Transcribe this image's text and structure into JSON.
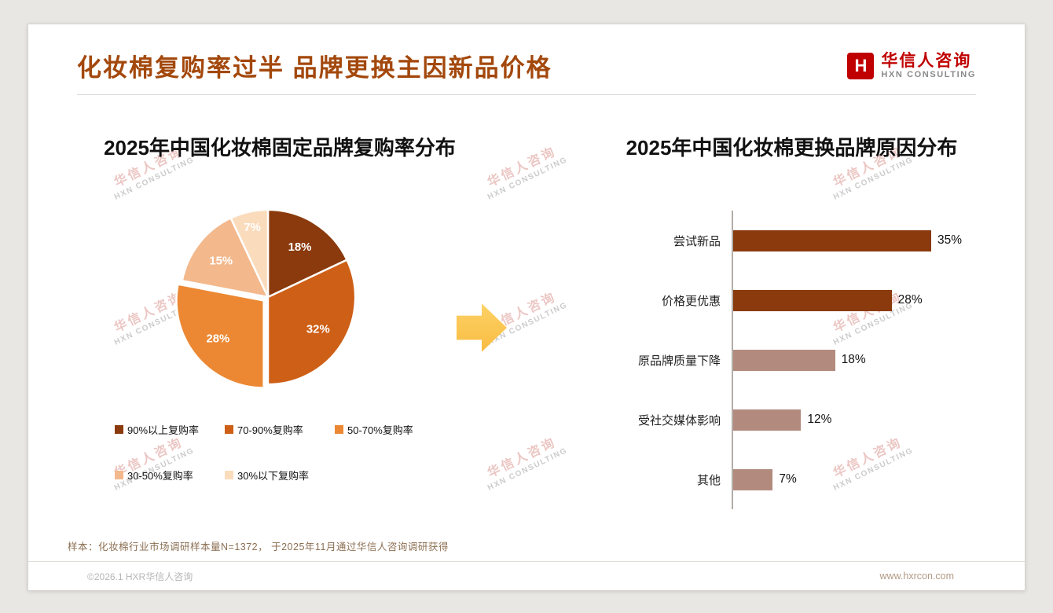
{
  "page": {
    "title": "化妆棉复购率过半 品牌更换主因新品价格",
    "footnote": "样本：化妆棉行业市场调研样本量N=1372， 于2025年11月通过华信人咨询调研获得",
    "copyright": "©2026.1 HXR华信人咨询",
    "website": "www.hxrcon.com"
  },
  "logo": {
    "mark": "H",
    "name_cn": "华信人咨询",
    "name_en": "HXN CONSULTING"
  },
  "watermark": {
    "line1": "华信人咨询",
    "line2": "HXN CONSULTING"
  },
  "colors": {
    "title": "#a3480c",
    "accent_dark": "#8a3a0c",
    "accent_rosy": "#b28b7e",
    "arrow": "#fbc64f",
    "logo_red": "#c00000"
  },
  "chart_data": [
    {
      "type": "pie",
      "title": "2025年中国化妆棉固定品牌复购率分布",
      "labels": [
        "90%以上复购率",
        "70-90%复购率",
        "50-70%复购率",
        "30-50%复购率",
        "30%以下复购率"
      ],
      "values": [
        18,
        32,
        28,
        15,
        7
      ],
      "value_labels": [
        "18%",
        "32%",
        "28%",
        "15%",
        "7%"
      ],
      "colors": [
        "#8a3a0c",
        "#ce5f16",
        "#ec8833",
        "#f3b88c",
        "#fadcbd"
      ],
      "explode_index": 2,
      "start_angle": "top",
      "direction": "clockwise",
      "legend_position": "bottom"
    },
    {
      "type": "bar",
      "orientation": "horizontal",
      "title": "2025年中国化妆棉更换品牌原因分布",
      "categories": [
        "尝试新品",
        "价格更优惠",
        "原品牌质量下降",
        "受社交媒体影响",
        "其他"
      ],
      "values": [
        35,
        28,
        18,
        12,
        7
      ],
      "value_labels": [
        "35%",
        "28%",
        "18%",
        "12%",
        "7%"
      ],
      "bar_colors": [
        "#8a3a0c",
        "#8a3a0c",
        "#b28b7e",
        "#b28b7e",
        "#b28b7e"
      ],
      "xlim": [
        0,
        40
      ],
      "grid": false,
      "legend_position": "none"
    }
  ]
}
